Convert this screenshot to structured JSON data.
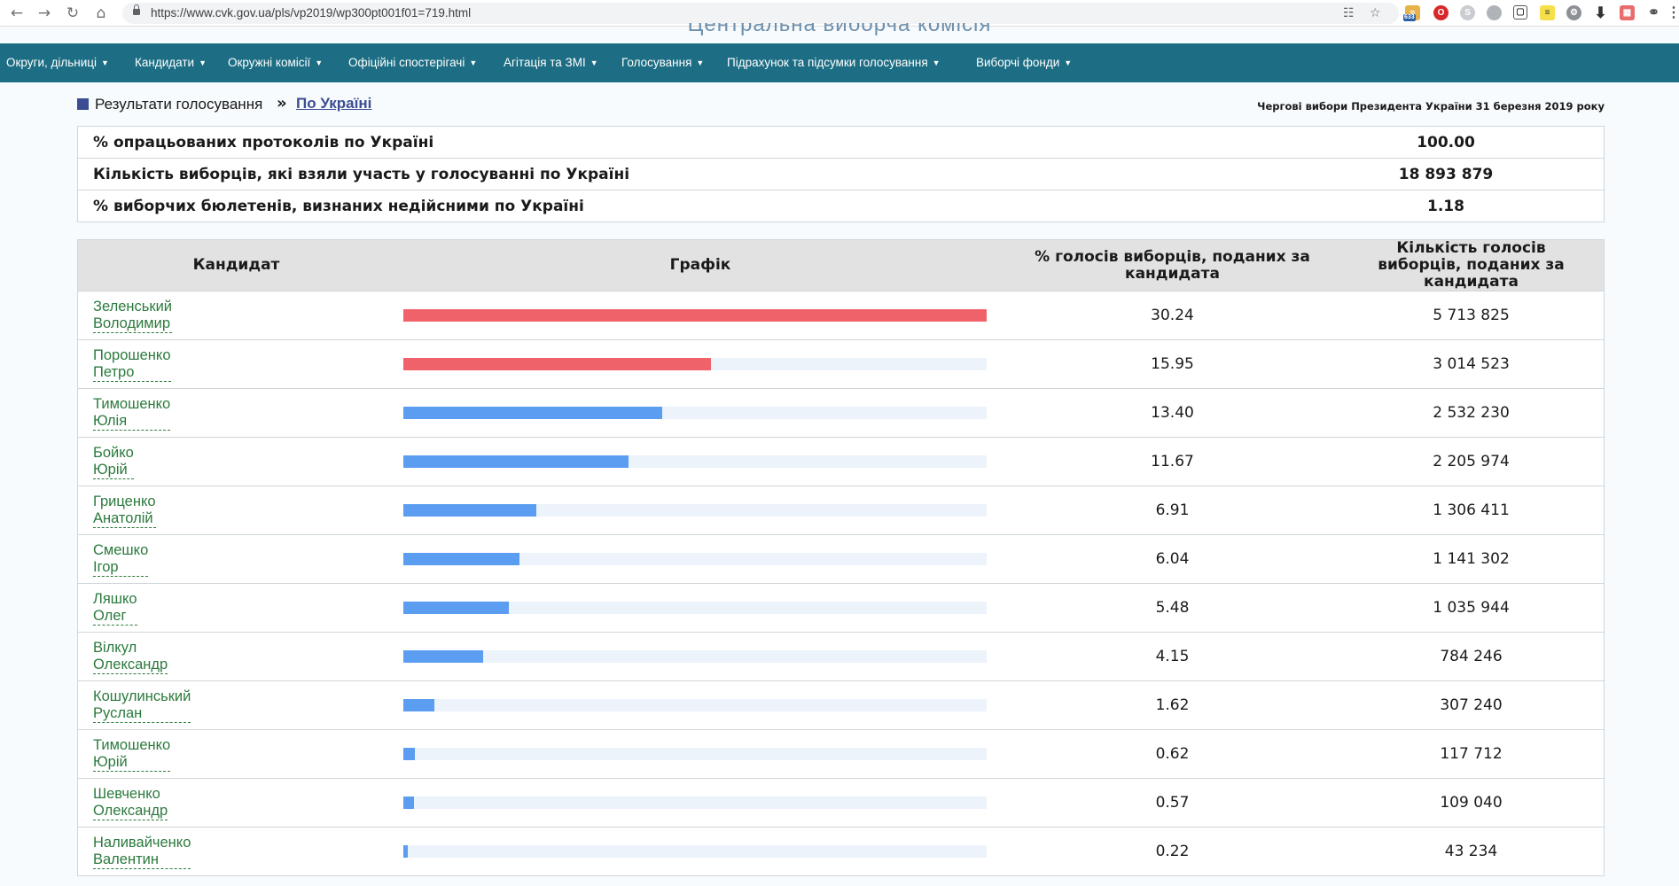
{
  "browser": {
    "url": "https://www.cvk.gov.ua/pls/vp2019/wp300pt001f01=719.html",
    "extension_badge": "633"
  },
  "site": {
    "title": "Центральна виборча комісія"
  },
  "menu": [
    {
      "label": "Округи, дільниці",
      "left": 7
    },
    {
      "label": "Кандидати",
      "left": 152
    },
    {
      "label": "Окружні комісії",
      "left": 257
    },
    {
      "label": "Офіційні спостерігачі",
      "left": 393
    },
    {
      "label": "Агітація та ЗМІ",
      "left": 568
    },
    {
      "label": "Голосування",
      "left": 701
    },
    {
      "label": "Підрахунок та підсумки голосування",
      "left": 820
    },
    {
      "label": "Виборчі фонди",
      "left": 1101
    }
  ],
  "breadcrumb": {
    "section": "Результати голосування",
    "separator": "»",
    "current": "По Україні"
  },
  "election_title": "Чергові вибори Президента України 31 березня 2019 року",
  "summary": [
    {
      "label": "% опрацьованих протоколів по Україні",
      "value": "100.00"
    },
    {
      "label": "Кількість виборців, які взяли участь у голосуванні по Україні",
      "value": "18 893 879"
    },
    {
      "label": "% виборчих бюлетенів, визнаних недійсними по Україні",
      "value": "1.18"
    }
  ],
  "results_header": {
    "candidate": "Кандидат",
    "chart": "Графік",
    "percent": "% голосів виборців, поданих за кандидата",
    "count": "Кількість голосів виборців, поданих за кандидата"
  },
  "colors": {
    "leader_bar": "#f0626a",
    "other_bar": "#5b9df0",
    "track": "#edf3fb",
    "menu_bg": "#1d6e84",
    "link_green": "#2b7a3d"
  },
  "chart_data": {
    "type": "bar",
    "title": "",
    "xlabel": "",
    "ylabel": "",
    "max_scale": 30.24,
    "categories": [
      "Зеленський Володимир",
      "Порошенко Петро",
      "Тимошенко Юлія",
      "Бойко Юрій",
      "Гриценко Анатолій",
      "Смешко Ігор",
      "Ляшко Олег",
      "Вілкул Олександр",
      "Кошулинський Руслан",
      "Тимошенко Юрій",
      "Шевченко Олександр",
      "Наливайченко Валентин"
    ],
    "values": [
      30.24,
      15.95,
      13.4,
      11.67,
      6.91,
      6.04,
      5.48,
      4.15,
      1.62,
      0.62,
      0.57,
      0.22
    ]
  },
  "candidates": [
    {
      "surname": "Зеленський",
      "name": "Володимир",
      "percent": "30.24",
      "votes": "5 713 825",
      "leader": true
    },
    {
      "surname": "Порошенко",
      "name": "Петро",
      "percent": "15.95",
      "votes": "3 014 523",
      "leader": true
    },
    {
      "surname": "Тимошенко",
      "name": "Юлія",
      "percent": "13.40",
      "votes": "2 532 230",
      "leader": false
    },
    {
      "surname": "Бойко",
      "name": "Юрій",
      "percent": "11.67",
      "votes": "2 205 974",
      "leader": false
    },
    {
      "surname": "Гриценко",
      "name": "Анатолій",
      "percent": "6.91",
      "votes": "1 306 411",
      "leader": false
    },
    {
      "surname": "Смешко",
      "name": "Ігор",
      "percent": "6.04",
      "votes": "1 141 302",
      "leader": false
    },
    {
      "surname": "Ляшко",
      "name": "Олег",
      "percent": "5.48",
      "votes": "1 035 944",
      "leader": false
    },
    {
      "surname": "Вілкул",
      "name": "Олександр",
      "percent": "4.15",
      "votes": "784 246",
      "leader": false
    },
    {
      "surname": "Кошулинський",
      "name": "Руслан",
      "percent": "1.62",
      "votes": "307 240",
      "leader": false
    },
    {
      "surname": "Тимошенко",
      "name": "Юрій",
      "percent": "0.62",
      "votes": "117 712",
      "leader": false
    },
    {
      "surname": "Шевченко",
      "name": "Олександр",
      "percent": "0.57",
      "votes": "109 040",
      "leader": false
    },
    {
      "surname": "Наливайченко",
      "name": "Валентин",
      "percent": "0.22",
      "votes": "43 234",
      "leader": false
    }
  ]
}
